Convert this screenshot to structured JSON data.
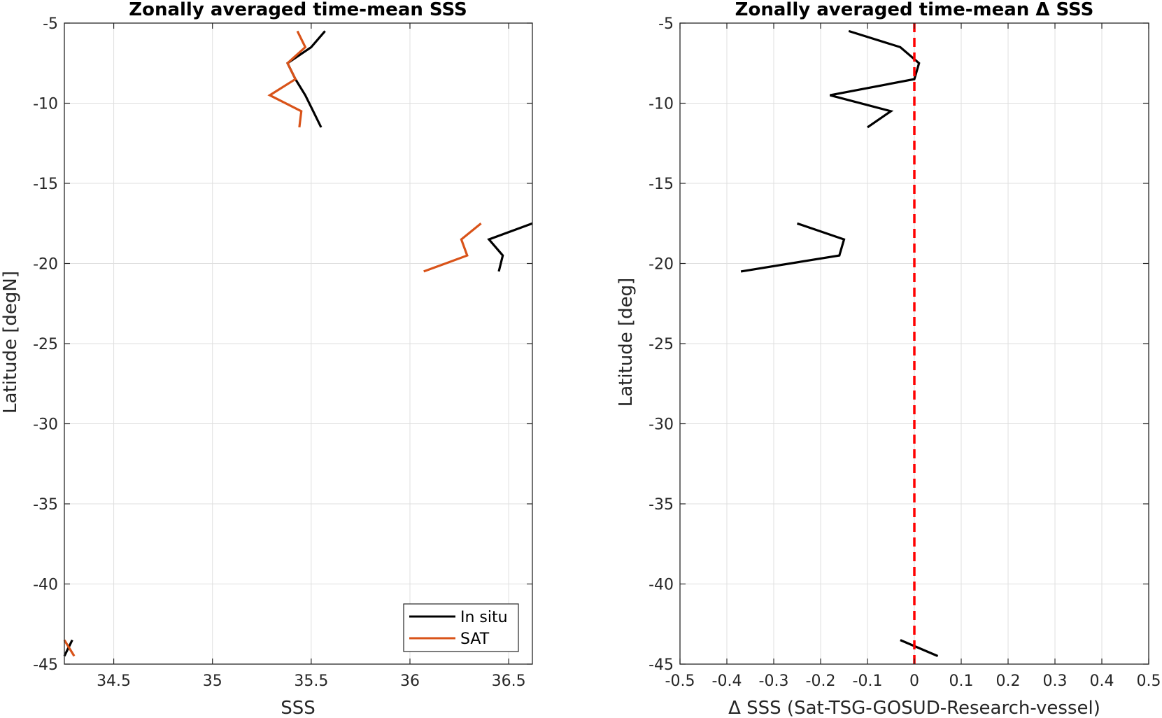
{
  "chart_data": [
    {
      "type": "line",
      "title": "Zonally averaged time-mean SSS",
      "xlabel": "SSS",
      "ylabel": "Latitude [degN]",
      "xlim": [
        34.25,
        36.62
      ],
      "ylim": [
        -45,
        -5
      ],
      "xticks": [
        34.5,
        35,
        35.5,
        36,
        36.5
      ],
      "xtick_labels": [
        "34.5",
        "35",
        "35.5",
        "36",
        "36.5"
      ],
      "yticks": [
        -45,
        -40,
        -35,
        -30,
        -25,
        -20,
        -15,
        -10,
        -5
      ],
      "ytick_labels": [
        "-45",
        "-40",
        "-35",
        "-30",
        "-25",
        "-20",
        "-15",
        "-10",
        "-5"
      ],
      "grid": true,
      "legend_position": "bottom-right",
      "series": [
        {
          "name": "In situ",
          "color": "#000000",
          "segments": [
            [
              [
                35.57,
                -5.5
              ],
              [
                35.5,
                -6.5
              ],
              [
                35.38,
                -7.5
              ],
              [
                35.42,
                -8.5
              ],
              [
                35.47,
                -9.5
              ],
              [
                35.51,
                -10.5
              ],
              [
                35.55,
                -11.5
              ]
            ],
            [
              [
                36.62,
                -17.5
              ],
              [
                36.4,
                -18.5
              ],
              [
                36.47,
                -19.5
              ],
              [
                36.45,
                -20.5
              ]
            ],
            [
              [
                34.29,
                -43.5
              ],
              [
                34.25,
                -44.5
              ]
            ]
          ]
        },
        {
          "name": "SAT",
          "color": "#D95319",
          "segments": [
            [
              [
                35.43,
                -5.5
              ],
              [
                35.47,
                -6.5
              ],
              [
                35.38,
                -7.5
              ],
              [
                35.42,
                -8.5
              ],
              [
                35.29,
                -9.5
              ],
              [
                35.45,
                -10.5
              ],
              [
                35.44,
                -11.5
              ]
            ],
            [
              [
                36.36,
                -17.5
              ],
              [
                36.26,
                -18.5
              ],
              [
                36.29,
                -19.5
              ],
              [
                36.07,
                -20.5
              ]
            ],
            [
              [
                34.25,
                -43.5
              ],
              [
                34.3,
                -44.5
              ]
            ]
          ]
        }
      ]
    },
    {
      "type": "line",
      "title": "Zonally averaged time-mean Δ SSS",
      "xlabel": "Δ SSS (Sat-TSG-GOSUD-Research-vessel)",
      "ylabel": "Latitude [deg]",
      "xlim": [
        -0.5,
        0.5
      ],
      "ylim": [
        -45,
        -5
      ],
      "xticks": [
        -0.5,
        -0.4,
        -0.3,
        -0.2,
        -0.1,
        0,
        0.1,
        0.2,
        0.3,
        0.4,
        0.5
      ],
      "xtick_labels": [
        "-0.5",
        "-0.4",
        "-0.3",
        "-0.2",
        "-0.1",
        "0",
        "0.1",
        "0.2",
        "0.3",
        "0.4",
        "0.5"
      ],
      "yticks": [
        -45,
        -40,
        -35,
        -30,
        -25,
        -20,
        -15,
        -10,
        -5
      ],
      "ytick_labels": [
        "-45",
        "-40",
        "-35",
        "-30",
        "-25",
        "-20",
        "-15",
        "-10",
        "-5"
      ],
      "grid": true,
      "reference_line": {
        "x": 0,
        "color": "#FF0000",
        "style": "dashed"
      },
      "series": [
        {
          "color": "#000000",
          "segments": [
            [
              [
                -0.14,
                -5.5
              ],
              [
                -0.03,
                -6.5
              ],
              [
                0.01,
                -7.5
              ],
              [
                0.0,
                -8.5
              ],
              [
                -0.18,
                -9.5
              ],
              [
                -0.05,
                -10.5
              ],
              [
                -0.1,
                -11.5
              ]
            ],
            [
              [
                -0.25,
                -17.5
              ],
              [
                -0.15,
                -18.5
              ],
              [
                -0.16,
                -19.5
              ],
              [
                -0.37,
                -20.5
              ]
            ],
            [
              [
                -0.03,
                -43.5
              ],
              [
                0.05,
                -44.5
              ]
            ]
          ]
        }
      ]
    }
  ]
}
